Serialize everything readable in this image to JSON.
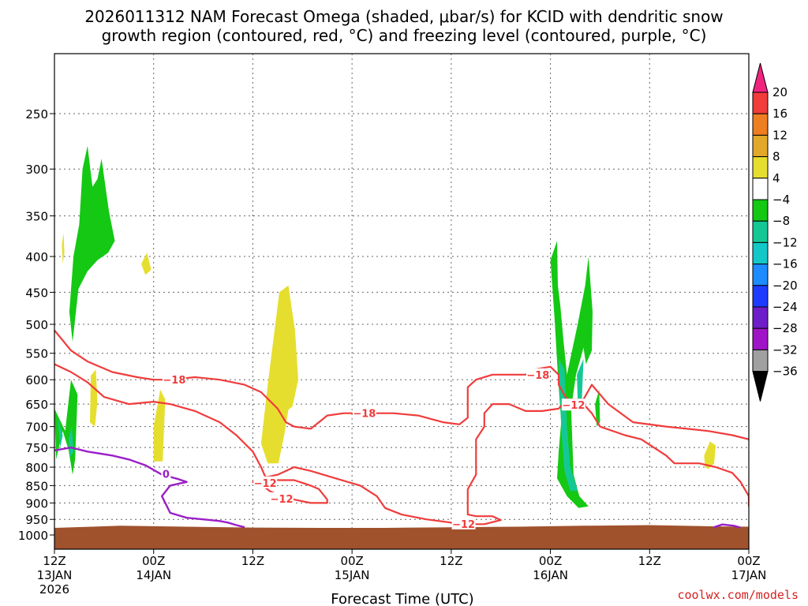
{
  "chart_data": {
    "type": "heatmap",
    "title_line1": "2026011312 NAM Forecast Omega (shaded, μbar/s) for KCID with dendritic snow",
    "title_line2": "growth region (contoured, red, °C) and freezing level (contoured, purple, °C)",
    "xlabel": "Forecast Time (UTC)",
    "ylabel": "",
    "y_axis_unit": "hPa",
    "y_ticks": [
      250,
      300,
      350,
      400,
      450,
      500,
      550,
      600,
      650,
      700,
      750,
      800,
      850,
      900,
      950,
      1000
    ],
    "x_axis_hours": [
      0,
      84
    ],
    "x_ticks": [
      {
        "hour": 0,
        "line1": "12Z",
        "line2": "13JAN",
        "line3": "2026"
      },
      {
        "hour": 12,
        "line1": "00Z",
        "line2": "14JAN",
        "line3": ""
      },
      {
        "hour": 24,
        "line1": "12Z",
        "line2": "",
        "line3": ""
      },
      {
        "hour": 36,
        "line1": "00Z",
        "line2": "15JAN",
        "line3": ""
      },
      {
        "hour": 48,
        "line1": "12Z",
        "line2": "",
        "line3": ""
      },
      {
        "hour": 60,
        "line1": "00Z",
        "line2": "16JAN",
        "line3": ""
      },
      {
        "hour": 72,
        "line1": "12Z",
        "line2": "",
        "line3": ""
      },
      {
        "hour": 84,
        "line1": "00Z",
        "line2": "17JAN",
        "line3": ""
      }
    ],
    "colorbar": {
      "labels": [
        "20",
        "16",
        "12",
        "8",
        "4",
        "−4",
        "−8",
        "−12",
        "−16",
        "−20",
        "−24",
        "−28",
        "−32",
        "−36"
      ],
      "colors": [
        "#f0247f",
        "#f23c3c",
        "#ee7e22",
        "#e2a82a",
        "#e6de2e",
        "#ffffff",
        "#14c814",
        "#14c896",
        "#14c8c8",
        "#1e8cff",
        "#1e3cff",
        "#6e1ec8",
        "#a014c8",
        "#a0a0a0",
        "#000000"
      ]
    },
    "omega_regions": [
      {
        "class": "4",
        "color": "#e6de2e",
        "points": [
          [
            0.9,
            385
          ],
          [
            1.1,
            370
          ],
          [
            1.2,
            395
          ],
          [
            1.0,
            410
          ]
        ]
      },
      {
        "class": "4",
        "color": "#e6de2e",
        "points": [
          [
            4.4,
            592
          ],
          [
            5.0,
            580
          ],
          [
            5.2,
            645
          ],
          [
            4.9,
            700
          ],
          [
            4.3,
            690
          ]
        ]
      },
      {
        "class": "4",
        "color": "#e6de2e",
        "points": [
          [
            10.5,
            410
          ],
          [
            11.2,
            395
          ],
          [
            11.7,
            418
          ],
          [
            11.0,
            425
          ]
        ]
      },
      {
        "class": "4",
        "color": "#e6de2e",
        "points": [
          [
            12.0,
            700
          ],
          [
            12.8,
            620
          ],
          [
            13.4,
            640
          ],
          [
            13.1,
            785
          ],
          [
            12.0,
            785
          ]
        ]
      },
      {
        "class": "4",
        "color": "#e6de2e",
        "points": [
          [
            25.0,
            740
          ],
          [
            25.8,
            610
          ],
          [
            27.2,
            450
          ],
          [
            28.3,
            440
          ],
          [
            29.1,
            510
          ],
          [
            29.5,
            600
          ],
          [
            28.8,
            655
          ],
          [
            28.3,
            662
          ],
          [
            27.8,
            720
          ],
          [
            27.1,
            790
          ],
          [
            25.8,
            790
          ]
        ]
      },
      {
        "class": "4",
        "color": "#e6de2e",
        "points": [
          [
            78.6,
            770
          ],
          [
            79.3,
            735
          ],
          [
            80.0,
            745
          ],
          [
            79.8,
            790
          ],
          [
            79.1,
            805
          ],
          [
            78.7,
            800
          ]
        ]
      },
      {
        "class": "-4",
        "color": "#14c814",
        "points": [
          [
            0.0,
            660
          ],
          [
            1.3,
            710
          ],
          [
            2.0,
            600
          ],
          [
            2.8,
            630
          ],
          [
            2.5,
            780
          ],
          [
            2.2,
            820
          ],
          [
            1.7,
            755
          ],
          [
            1.0,
            710
          ],
          [
            0.2,
            780
          ]
        ]
      },
      {
        "class": "-4",
        "color": "#14c814",
        "points": [
          [
            1.8,
            480
          ],
          [
            2.3,
            400
          ],
          [
            3.0,
            360
          ],
          [
            3.4,
            300
          ],
          [
            4.0,
            278
          ],
          [
            4.6,
            318
          ],
          [
            5.2,
            310
          ],
          [
            5.7,
            290
          ],
          [
            6.6,
            345
          ],
          [
            7.3,
            380
          ],
          [
            6.5,
            395
          ],
          [
            5.2,
            405
          ],
          [
            4.0,
            420
          ],
          [
            2.9,
            445
          ],
          [
            2.2,
            530
          ]
        ]
      },
      {
        "class": "-4",
        "color": "#14c814",
        "points": [
          [
            60.0,
            405
          ],
          [
            60.8,
            380
          ],
          [
            60.9,
            440
          ],
          [
            61.2,
            470
          ],
          [
            61.6,
            530
          ],
          [
            62.0,
            590
          ],
          [
            63.3,
            500
          ],
          [
            64.2,
            440
          ],
          [
            64.6,
            400
          ],
          [
            65.1,
            480
          ],
          [
            65.0,
            545
          ],
          [
            64.3,
            570
          ],
          [
            64.0,
            540
          ],
          [
            63.1,
            590
          ],
          [
            62.5,
            660
          ],
          [
            62.8,
            820
          ],
          [
            63.5,
            880
          ],
          [
            64.6,
            910
          ],
          [
            63.4,
            915
          ],
          [
            62.0,
            880
          ],
          [
            60.8,
            830
          ],
          [
            61.0,
            760
          ],
          [
            61.3,
            690
          ],
          [
            60.9,
            590
          ],
          [
            60.5,
            490
          ]
        ]
      },
      {
        "class": "-4",
        "color": "#14c814",
        "points": [
          [
            65.4,
            650
          ],
          [
            65.9,
            620
          ],
          [
            66.0,
            690
          ],
          [
            65.6,
            700
          ]
        ]
      },
      {
        "class": "-8",
        "color": "#14c896",
        "points": [
          [
            0.4,
            680
          ],
          [
            1.0,
            720
          ],
          [
            0.7,
            750
          ]
        ]
      },
      {
        "class": "-8",
        "color": "#14c896",
        "points": [
          [
            1.7,
            730
          ],
          [
            2.1,
            700
          ],
          [
            2.3,
            760
          ],
          [
            1.9,
            775
          ]
        ]
      },
      {
        "class": "-8",
        "color": "#14c896",
        "points": [
          [
            61.0,
            560
          ],
          [
            61.7,
            580
          ],
          [
            62.0,
            700
          ],
          [
            62.4,
            800
          ],
          [
            63.3,
            865
          ],
          [
            62.4,
            865
          ],
          [
            61.7,
            810
          ],
          [
            61.3,
            700
          ]
        ]
      },
      {
        "class": "-8",
        "color": "#14c896",
        "points": [
          [
            63.2,
            590
          ],
          [
            64.0,
            560
          ],
          [
            63.8,
            640
          ],
          [
            63.3,
            640
          ]
        ]
      }
    ],
    "dgz_contours": [
      {
        "level": -18,
        "label": "−18",
        "points": [
          [
            0,
            510
          ],
          [
            2,
            545
          ],
          [
            4,
            565
          ],
          [
            7,
            585
          ],
          [
            10,
            595
          ],
          [
            12,
            600
          ],
          [
            14,
            600
          ],
          [
            17,
            595
          ],
          [
            20,
            600
          ],
          [
            23,
            610
          ],
          [
            25,
            625
          ],
          [
            27,
            660
          ],
          [
            28,
            690
          ],
          [
            29,
            700
          ],
          [
            31,
            705
          ],
          [
            32,
            690
          ],
          [
            33,
            675
          ],
          [
            35,
            670
          ],
          [
            38,
            670
          ],
          [
            41,
            670
          ],
          [
            44,
            675
          ],
          [
            47,
            690
          ],
          [
            49,
            695
          ],
          [
            50,
            680
          ],
          [
            50,
            650
          ],
          [
            50,
            615
          ],
          [
            51,
            600
          ],
          [
            53,
            590
          ],
          [
            55,
            590
          ],
          [
            57,
            590
          ],
          [
            58,
            580
          ],
          [
            60,
            575
          ],
          [
            61,
            590
          ],
          [
            61,
            610
          ],
          [
            62,
            640
          ],
          [
            64,
            640
          ],
          [
            65,
            610
          ],
          [
            67,
            650
          ],
          [
            70,
            690
          ],
          [
            74,
            700
          ],
          [
            79,
            710
          ],
          [
            82,
            720
          ],
          [
            84,
            730
          ]
        ]
      },
      {
        "level": -12,
        "label": "−12",
        "points": [
          [
            0,
            570
          ],
          [
            2,
            585
          ],
          [
            4,
            605
          ],
          [
            6,
            635
          ],
          [
            9,
            650
          ],
          [
            12,
            645
          ],
          [
            14,
            650
          ],
          [
            17,
            665
          ],
          [
            20,
            690
          ],
          [
            22,
            720
          ],
          [
            24,
            760
          ],
          [
            25,
            800
          ],
          [
            25.5,
            825
          ],
          [
            27,
            835
          ],
          [
            29,
            835
          ],
          [
            31,
            850
          ],
          [
            32,
            860
          ],
          [
            33,
            890
          ],
          [
            33,
            900
          ],
          [
            31,
            900
          ],
          [
            29,
            890
          ],
          [
            27,
            875
          ],
          [
            26,
            865
          ],
          [
            25.5,
            855
          ],
          [
            24,
            840
          ],
          [
            25,
            830
          ],
          [
            27,
            820
          ],
          [
            29,
            800
          ],
          [
            31,
            810
          ],
          [
            34,
            830
          ],
          [
            37,
            850
          ],
          [
            39,
            880
          ],
          [
            40,
            915
          ],
          [
            42,
            935
          ],
          [
            45,
            950
          ],
          [
            48,
            960
          ],
          [
            51,
            965
          ],
          [
            52,
            965
          ],
          [
            54,
            952
          ],
          [
            53,
            940
          ],
          [
            51,
            940
          ],
          [
            50,
            935
          ],
          [
            50,
            900
          ],
          [
            50,
            860
          ],
          [
            51,
            820
          ],
          [
            51,
            790
          ],
          [
            51,
            730
          ],
          [
            52,
            700
          ],
          [
            52,
            670
          ],
          [
            53,
            650
          ],
          [
            55,
            650
          ],
          [
            57,
            665
          ],
          [
            59,
            665
          ],
          [
            61,
            660
          ],
          [
            62,
            640
          ],
          [
            64,
            650
          ],
          [
            65,
            670
          ],
          [
            66,
            700
          ],
          [
            69,
            720
          ],
          [
            71,
            730
          ],
          [
            74,
            770
          ],
          [
            75,
            790
          ],
          [
            78,
            790
          ],
          [
            80,
            800
          ],
          [
            82,
            815
          ],
          [
            83,
            840
          ],
          [
            84,
            880
          ],
          [
            84,
            910
          ]
        ]
      }
    ],
    "dgz_labels": [
      {
        "text": "−18",
        "hour": 14.5,
        "hpa": 600
      },
      {
        "text": "−18",
        "hour": 37.5,
        "hpa": 670
      },
      {
        "text": "−18",
        "hour": 58.5,
        "hpa": 590
      },
      {
        "text": "−12",
        "hour": 62.8,
        "hpa": 652
      },
      {
        "text": "−12",
        "hour": 25.5,
        "hpa": 842
      },
      {
        "text": "−12",
        "hour": 27.5,
        "hpa": 887
      },
      {
        "text": "−12",
        "hour": 49.5,
        "hpa": 964
      }
    ],
    "freezing_contour": {
      "level": 0,
      "label": "0",
      "points": [
        [
          0,
          757
        ],
        [
          2,
          750
        ],
        [
          4,
          760
        ],
        [
          7,
          770
        ],
        [
          9,
          780
        ],
        [
          11,
          795
        ],
        [
          13,
          820
        ],
        [
          15,
          832
        ],
        [
          16,
          840
        ],
        [
          15,
          845
        ],
        [
          14,
          850
        ],
        [
          13,
          880
        ],
        [
          14,
          930
        ],
        [
          16,
          945
        ],
        [
          18,
          950
        ],
        [
          20,
          955
        ],
        [
          21,
          960
        ],
        [
          22,
          968
        ],
        [
          23,
          975
        ]
      ]
    },
    "freezing_contour_2": {
      "level": 0,
      "label": "",
      "points": [
        [
          79.8,
          975
        ],
        [
          80.8,
          966
        ],
        [
          82.2,
          970
        ],
        [
          83.0,
          976
        ]
      ]
    },
    "freezing_label": {
      "text": "0",
      "hour": 13.5,
      "hpa": 818
    },
    "terrain": {
      "color": "#a0522d",
      "surface_hpa": [
        [
          0,
          977
        ],
        [
          8,
          970
        ],
        [
          16,
          973
        ],
        [
          24,
          976
        ],
        [
          32,
          977
        ],
        [
          40,
          977
        ],
        [
          48,
          975
        ],
        [
          56,
          973
        ],
        [
          64,
          970
        ],
        [
          72,
          968
        ],
        [
          80,
          972
        ],
        [
          84,
          973
        ]
      ]
    }
  },
  "credit": "coolwx.com/models"
}
